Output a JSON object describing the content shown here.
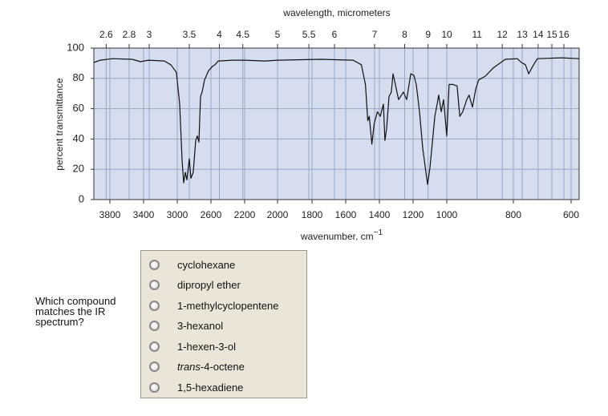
{
  "chart_data": {
    "type": "line",
    "x_label": "wavenumber, cm",
    "x_label_exponent": "−1",
    "x2_label": "wavelength, micrometers",
    "y_label": "percent transmittance",
    "xlim": [
      4000,
      575
    ],
    "xticks": [
      3800,
      3400,
      3000,
      2600,
      2200,
      2000,
      1800,
      1600,
      1400,
      1200,
      1000,
      800,
      600
    ],
    "x2ticks": [
      2.6,
      2.8,
      3,
      3.5,
      4,
      4.5,
      5,
      5.5,
      6,
      7,
      8,
      9,
      10,
      11,
      12,
      13,
      14,
      15,
      16
    ],
    "ylim": [
      0,
      100
    ],
    "yticks": [
      0,
      20,
      40,
      60,
      80,
      100
    ],
    "grid": true,
    "color": "#111111",
    "x": [
      4000,
      3920,
      3770,
      3533,
      3438,
      3343,
      3152,
      3076,
      3010,
      2971,
      2943,
      2924,
      2905,
      2886,
      2857,
      2838,
      2810,
      2781,
      2762,
      2743,
      2724,
      2705,
      2676,
      2629,
      2581,
      2552,
      2514,
      2343,
      2200,
      2078,
      2000,
      1744,
      1555,
      1507,
      1483,
      1469,
      1460,
      1445,
      1431,
      1412,
      1395,
      1376,
      1367,
      1357,
      1343,
      1329,
      1319,
      1305,
      1286,
      1257,
      1238,
      1214,
      1195,
      1181,
      1162,
      1143,
      1124,
      1114,
      1100,
      1086,
      1071,
      1057,
      1048,
      1033,
      1019,
      1000,
      993,
      981,
      969,
      961,
      952,
      940,
      933,
      923,
      913,
      904,
      884,
      860,
      824,
      786,
      772,
      758,
      747,
      733,
      717,
      633,
      575
    ],
    "values": [
      90.5,
      92,
      93,
      92.6,
      91,
      92,
      91.5,
      89,
      84,
      63,
      26,
      11,
      18,
      13,
      27,
      14,
      18,
      39,
      42,
      38,
      68,
      71,
      79,
      85,
      88,
      89,
      91.5,
      92,
      92,
      91.5,
      92,
      92.6,
      92,
      89,
      76,
      52,
      55,
      36.5,
      50,
      58,
      55,
      63,
      39,
      47,
      68,
      71,
      83,
      76,
      66,
      71,
      66,
      83,
      82,
      76,
      58,
      34,
      18,
      10,
      21,
      37,
      55,
      63,
      69,
      58,
      66,
      42,
      76,
      76,
      75,
      55,
      58,
      66,
      69,
      61,
      73,
      79,
      81.5,
      87,
      92.6,
      93,
      90.5,
      89,
      83,
      88,
      93,
      93.6,
      93
    ]
  },
  "question": "Which compound matches the IR spectrum?",
  "options": [
    "cyclohexane",
    "dipropyl ether",
    "1-methylcyclopentene",
    "3-hexanol",
    "1-hexen-3-ol",
    {
      "prefix": "trans",
      "text": "-4-octene"
    },
    "1,5-hexadiene"
  ]
}
